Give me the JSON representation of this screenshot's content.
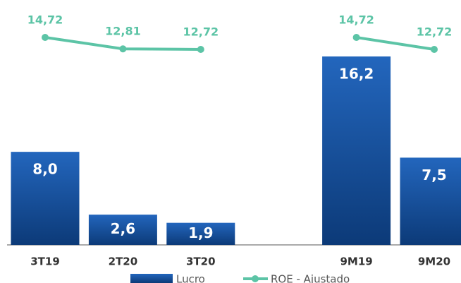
{
  "chart_data": {
    "type": "bar-line",
    "categories": [
      "3T19",
      "2T20",
      "3T20",
      null,
      "9M19",
      "9M20"
    ],
    "series": [
      {
        "name": "Lucro",
        "type": "bar",
        "color": "#1a56a8",
        "values": [
          8.0,
          2.6,
          1.9,
          null,
          16.2,
          7.5
        ],
        "value_labels": [
          "8,0",
          "2,6",
          "1,9",
          null,
          "16,2",
          "7,5"
        ]
      },
      {
        "name": "ROE - Ajustado",
        "type": "line",
        "axis": "y2",
        "color": "#5cc4a6",
        "values": [
          14.72,
          12.81,
          12.72,
          null,
          14.72,
          12.72
        ],
        "value_labels": [
          "14,72",
          "12,81",
          "12,72",
          null,
          "14,72",
          "12,72"
        ]
      }
    ],
    "legend": "bottom"
  }
}
